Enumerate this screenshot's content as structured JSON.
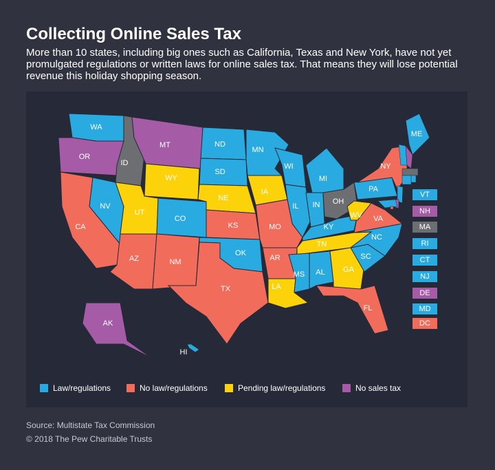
{
  "title": "Collecting Online Sales Tax",
  "subtitle": "More than 10 states, including big ones such as California, Texas and New York, have not yet promulgated regulations or written laws for online sales tax. That means they will lose potential revenue this holiday shopping season.",
  "legend": [
    {
      "label": "Law/regulations",
      "color": "#29abe2"
    },
    {
      "label": "No law/regulations",
      "color": "#f26c5c"
    },
    {
      "label": "Pending law/regulations",
      "color": "#fcd20a"
    },
    {
      "label": "No sales tax",
      "color": "#a55ba6"
    }
  ],
  "unlisted_color": "#6d6e71",
  "states": [
    {
      "label": "WA",
      "status": 0
    },
    {
      "label": "OR",
      "status": 3
    },
    {
      "label": "CA",
      "status": 1
    },
    {
      "label": "NV",
      "status": 0
    },
    {
      "label": "ID",
      "status": null
    },
    {
      "label": "MT",
      "status": 3
    },
    {
      "label": "WY",
      "status": 2
    },
    {
      "label": "UT",
      "status": 2
    },
    {
      "label": "CO",
      "status": 0
    },
    {
      "label": "AZ",
      "status": 1
    },
    {
      "label": "NM",
      "status": 1
    },
    {
      "label": "ND",
      "status": 0
    },
    {
      "label": "SD",
      "status": 0
    },
    {
      "label": "NE",
      "status": 2
    },
    {
      "label": "KS",
      "status": 1
    },
    {
      "label": "OK",
      "status": 0
    },
    {
      "label": "TX",
      "status": 1
    },
    {
      "label": "MN",
      "status": 0
    },
    {
      "label": "IA",
      "status": 2
    },
    {
      "label": "WI",
      "status": 0
    },
    {
      "label": "IL",
      "status": 0
    },
    {
      "label": "MO",
      "status": 1
    },
    {
      "label": "AR",
      "status": 1
    },
    {
      "label": "LA",
      "status": 2
    },
    {
      "label": "MI",
      "status": 0
    },
    {
      "label": "IN",
      "status": 0
    },
    {
      "label": "OH",
      "status": null
    },
    {
      "label": "KY",
      "status": 0
    },
    {
      "label": "TN",
      "status": 2
    },
    {
      "label": "MS",
      "status": 0
    },
    {
      "label": "AL",
      "status": 0
    },
    {
      "label": "GA",
      "status": 2
    },
    {
      "label": "FL",
      "status": 1
    },
    {
      "label": "SC",
      "status": 0
    },
    {
      "label": "NC",
      "status": 0
    },
    {
      "label": "VA",
      "status": 1
    },
    {
      "label": "WV",
      "status": 2
    },
    {
      "label": "PA",
      "status": 0
    },
    {
      "label": "NY",
      "status": 1
    },
    {
      "label": "ME",
      "status": 0
    },
    {
      "label": "AK",
      "status": 3
    },
    {
      "label": "HI",
      "status": 0
    }
  ],
  "small_states": [
    {
      "label": "VT",
      "status": 0
    },
    {
      "label": "NH",
      "status": 3
    },
    {
      "label": "MA",
      "status": null
    },
    {
      "label": "RI",
      "status": 0
    },
    {
      "label": "CT",
      "status": 0
    },
    {
      "label": "NJ",
      "status": 0
    },
    {
      "label": "DE",
      "status": 3
    },
    {
      "label": "MD",
      "status": 0
    },
    {
      "label": "DC",
      "status": 1
    }
  ],
  "source": "Source: Multistate Tax Commission",
  "copyright": "© 2018 The Pew Charitable Trusts"
}
